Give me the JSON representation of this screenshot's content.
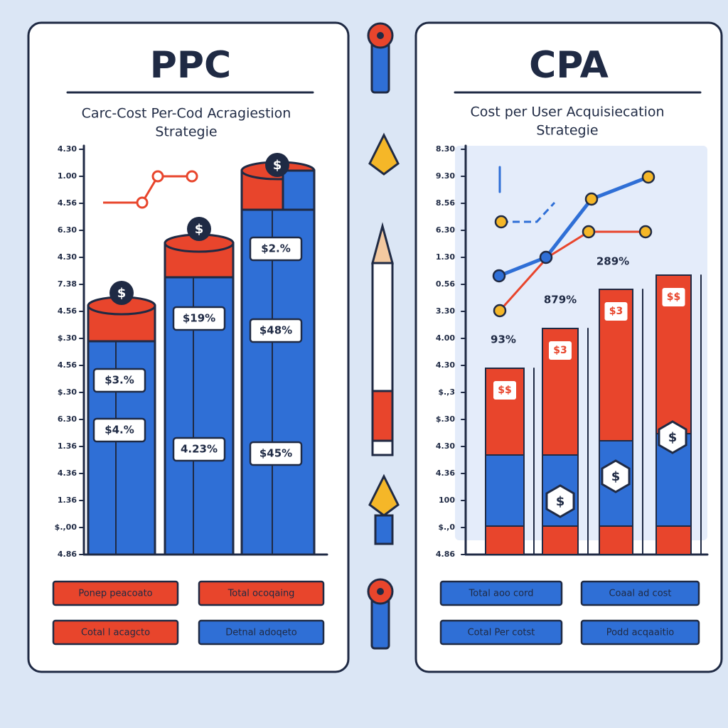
{
  "left_panel": {
    "title": "PPC",
    "subtitle": [
      "Carc-Cost Per-Cod Acragiestion",
      "Strategie"
    ],
    "y_labels": [
      "4.30",
      "1.00",
      "4.56",
      "6.30",
      "4.30",
      "7.38",
      "4.56",
      "$.30",
      "4.56",
      "$.30",
      "6.30",
      "1.36",
      "4.36",
      "1.36",
      "$.,00",
      "4.86"
    ],
    "bar_labels": [
      "$3.%",
      "$4.%",
      "$19%",
      "4.23%",
      "$2.%",
      "$48%",
      "$45%"
    ],
    "coin": "$",
    "legend": [
      "Ponep peacoato",
      "Total ocoqaing",
      "Cotal l acagcto",
      "Detnal adoqeto"
    ]
  },
  "right_panel": {
    "title": "CPA",
    "subtitle": [
      "Cost per User Acquisiecation",
      "Strategie"
    ],
    "y_labels": [
      "8.30",
      "9.30",
      "8.56",
      "6.30",
      "1.30",
      "0.56",
      "3.30",
      "4.00",
      "4.30",
      "$.,3",
      "$.30",
      "4.30",
      "4.36",
      "100",
      "$.,0",
      "4.86"
    ],
    "data_labels": [
      "93%",
      "879%",
      "289%"
    ],
    "bar_tags": [
      "$$",
      "$3",
      "$3",
      "$$"
    ],
    "badge": "$",
    "legend": [
      "Total aoo cord",
      "Coaal ad cost",
      "Cotal Per cotst",
      "Podd acqaaitio"
    ]
  }
}
